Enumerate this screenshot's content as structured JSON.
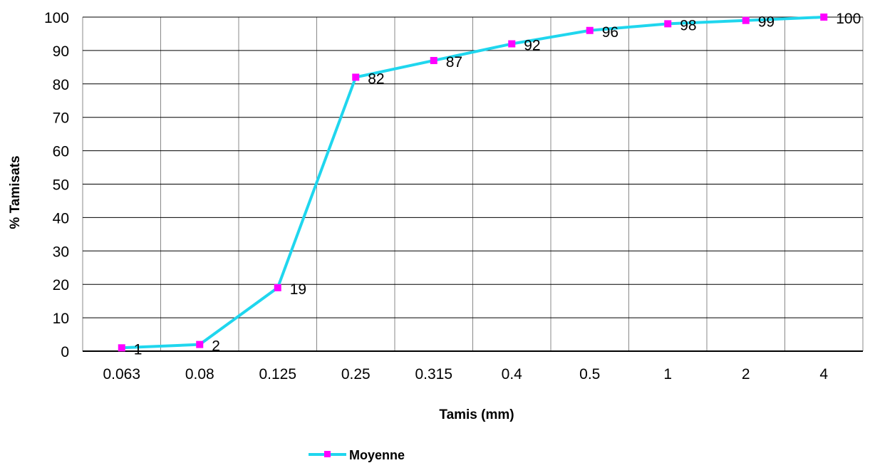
{
  "chart_data": {
    "type": "line",
    "title": "",
    "xlabel": "Tamis (mm)",
    "ylabel": "% Tamisats",
    "categories": [
      "0.063",
      "0.08",
      "0.125",
      "0.25",
      "0.315",
      "0.4",
      "0.5",
      "1",
      "2",
      "4"
    ],
    "series": [
      {
        "name": "Moyenne",
        "values": [
          1,
          2,
          19,
          82,
          87,
          92,
          96,
          98,
          99,
          100
        ],
        "data_labels": [
          "1",
          "2",
          "19",
          "82",
          "87",
          "92",
          "96",
          "98",
          "99",
          "100"
        ]
      }
    ],
    "ylim": [
      0,
      100
    ],
    "yticks": [
      "0",
      "10",
      "20",
      "30",
      "40",
      "50",
      "60",
      "70",
      "80",
      "90",
      "100"
    ],
    "grid": true,
    "legend_position": "bottom",
    "colors": {
      "line": "#1fd6ee",
      "marker": "#ff00ff",
      "grid": "#000000"
    }
  }
}
